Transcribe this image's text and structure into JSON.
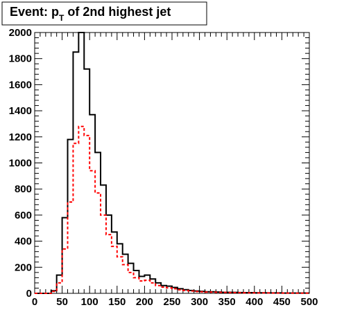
{
  "chart_data": {
    "type": "histogram",
    "title_main": "Event: p",
    "title_sub": "T",
    "title_rest": " of 2nd highest jet",
    "xlabel": "",
    "ylabel": "",
    "xlim": [
      0,
      500
    ],
    "ylim": [
      0,
      2000
    ],
    "x_ticks": [
      0,
      50,
      100,
      150,
      200,
      250,
      300,
      350,
      400,
      450,
      500
    ],
    "y_ticks": [
      0,
      200,
      400,
      600,
      800,
      1000,
      1200,
      1400,
      1600,
      1800,
      2000
    ],
    "bin_width": 10,
    "bin_edges_start": 0,
    "grid": false,
    "series": [
      {
        "style": "solid",
        "color": "#000000",
        "values": [
          0,
          0,
          0,
          20,
          140,
          580,
          1180,
          1850,
          2000,
          1720,
          1370,
          1080,
          830,
          600,
          470,
          380,
          300,
          230,
          175,
          130,
          140,
          110,
          80,
          60,
          55,
          45,
          35,
          28,
          22,
          18,
          15,
          12,
          12,
          10,
          8,
          8,
          7,
          6,
          5,
          5,
          4,
          4,
          3,
          3,
          3,
          2,
          2,
          2,
          2,
          2
        ]
      },
      {
        "style": "dashed",
        "color": "#ff0000",
        "values": [
          0,
          0,
          0,
          15,
          80,
          340,
          700,
          1150,
          1280,
          1210,
          940,
          770,
          600,
          450,
          360,
          280,
          220,
          160,
          120,
          95,
          100,
          80,
          60,
          48,
          42,
          35,
          27,
          22,
          18,
          14,
          12,
          10,
          9,
          8,
          7,
          6,
          5,
          5,
          4,
          4,
          3,
          3,
          3,
          2,
          2,
          2,
          2,
          1,
          1,
          1
        ]
      }
    ]
  }
}
